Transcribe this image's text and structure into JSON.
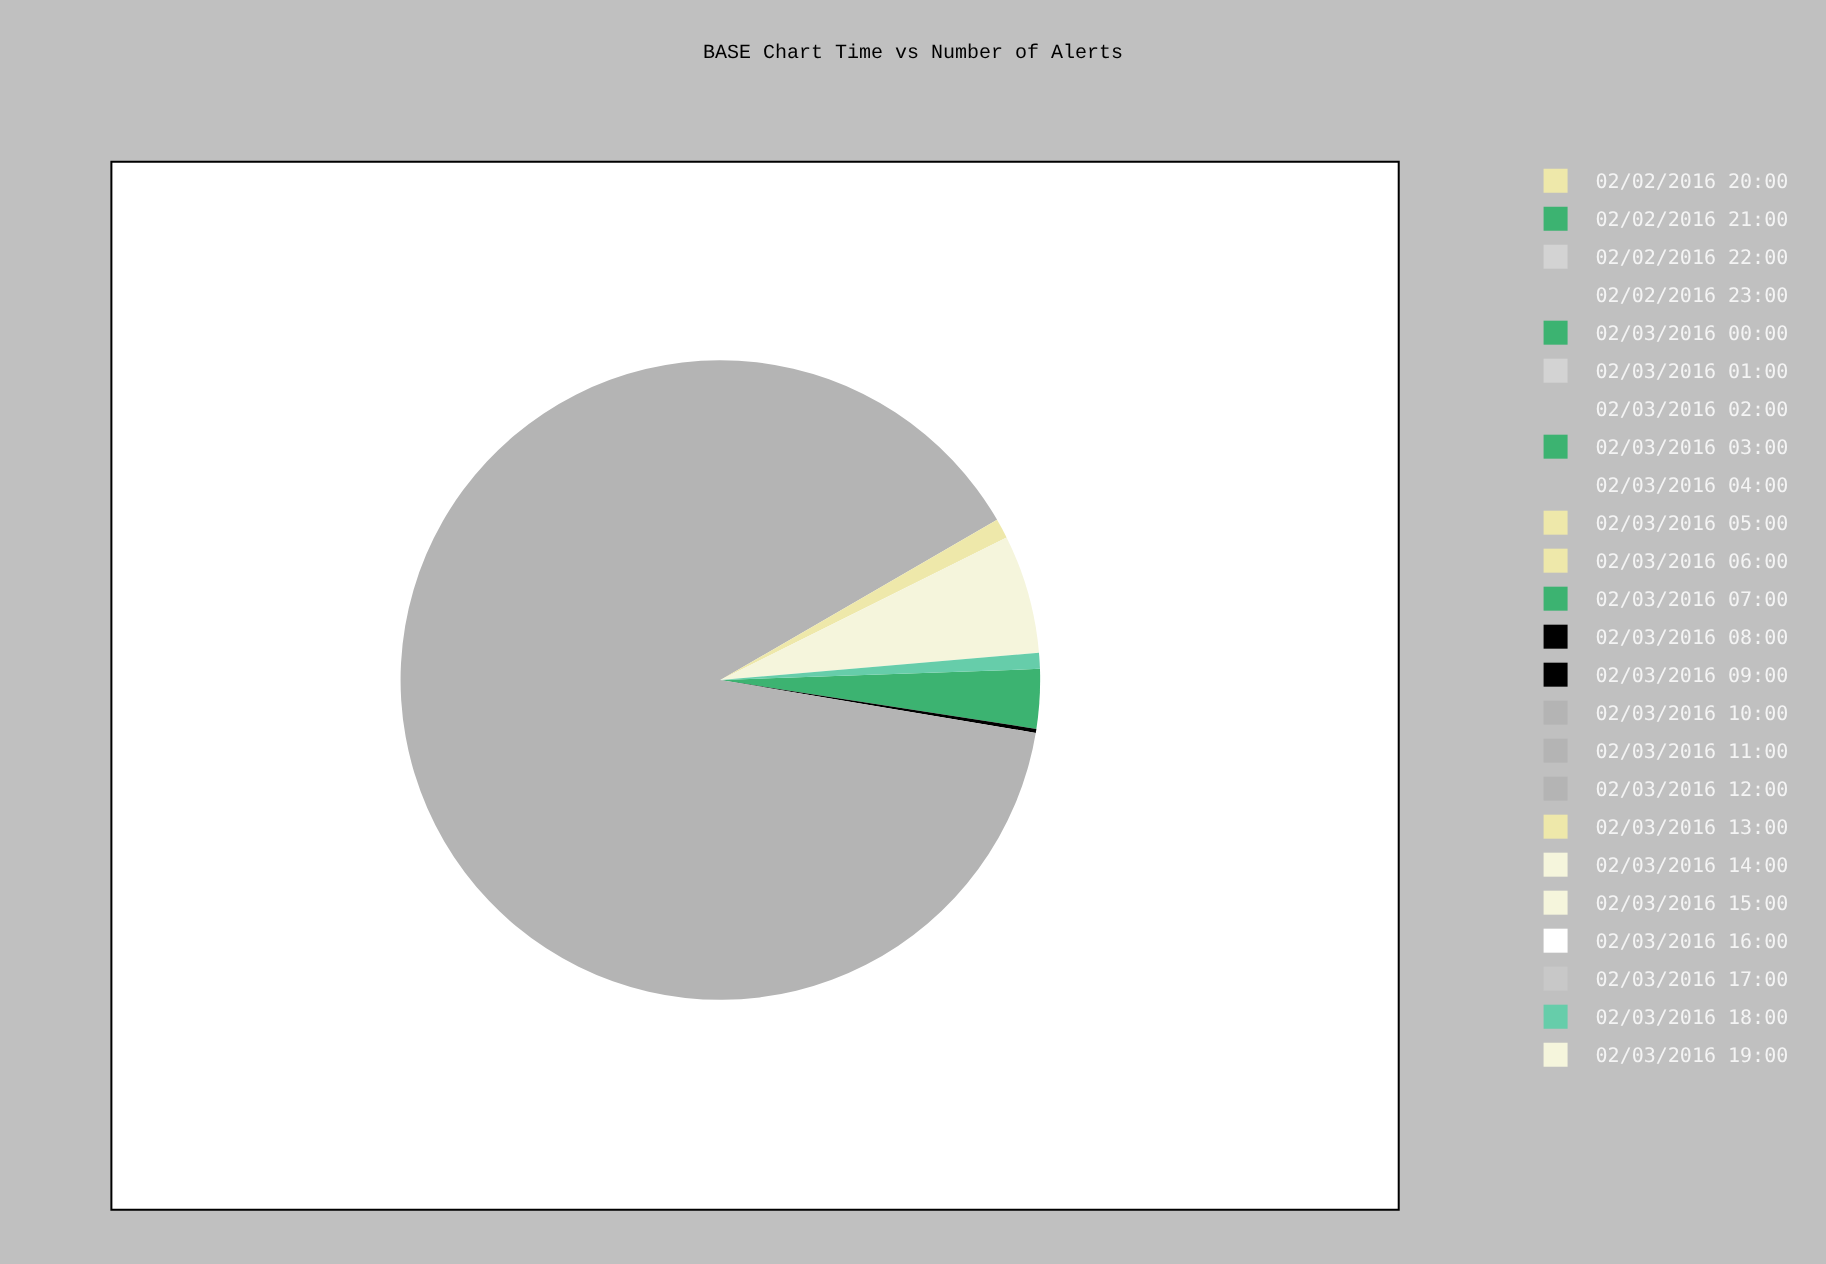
{
  "chart_data": {
    "type": "pie",
    "title": "BASE Chart Time vs Number of Alerts",
    "categories": [
      "02/02/2016 20:00",
      "02/02/2016 21:00",
      "02/02/2016 22:00",
      "02/02/2016 23:00",
      "02/03/2016 00:00",
      "02/03/2016 01:00",
      "02/03/2016 02:00",
      "02/03/2016 03:00",
      "02/03/2016 04:00",
      "02/03/2016 05:00",
      "02/03/2016 06:00",
      "02/03/2016 07:00",
      "02/03/2016 08:00",
      "02/03/2016 09:00",
      "02/03/2016 10:00",
      "02/03/2016 11:00",
      "02/03/2016 12:00",
      "02/03/2016 13:00",
      "02/03/2016 14:00",
      "02/03/2016 15:00",
      "02/03/2016 16:00",
      "02/03/2016 17:00",
      "02/03/2016 18:00",
      "02/03/2016 19:00"
    ],
    "values": [
      0,
      0,
      0,
      0,
      0,
      0,
      0,
      0,
      0,
      0,
      0,
      3,
      0.2,
      0,
      89,
      0,
      0,
      1,
      6,
      0,
      0,
      0,
      0.8,
      0
    ],
    "colors": [
      "#eee8aa",
      "#3cb371",
      "#d3d3d3",
      "#c0c0c0",
      "#3cb371",
      "#d3d3d3",
      "#c0c0c0",
      "#3cb371",
      "#c0c0c0",
      "#eee8aa",
      "#eee8aa",
      "#3cb371",
      "#000000",
      "#000000",
      "#b4b4b4",
      "#b4b4b4",
      "#b4b4b4",
      "#eee8aa",
      "#f5f5dc",
      "#f5f5dc",
      "#ffffff",
      "#c8c8c8",
      "#66cdaa",
      "#f5f5dc"
    ],
    "legend": "right"
  }
}
